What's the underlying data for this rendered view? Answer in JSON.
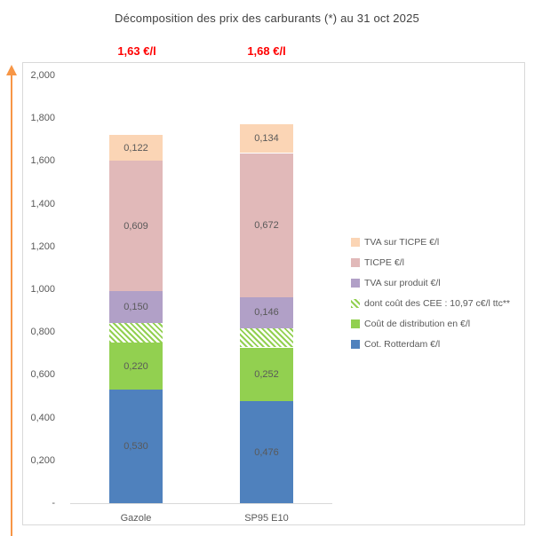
{
  "chart": {
    "title": "Décomposition des prix des carburants (*) au 31 oct 2025",
    "title_color": "#404040",
    "totals_color": "#FF0000",
    "axis_arrow_color": "#F79646",
    "border_color": "#D9D9D9",
    "text_color": "#595959"
  },
  "chart_data": {
    "type": "bar",
    "stacked": true,
    "grid": false,
    "legend_position": "right-inside",
    "categories": [
      "Gazole",
      "SP95 E10"
    ],
    "totals": [
      "1,63 €/l",
      "1,68 €/l"
    ],
    "series": [
      {
        "name": "Cot. Rotterdam €/l",
        "color": "#4F81BD",
        "pattern": "solid",
        "values": [
          0.53,
          0.476
        ],
        "labels": [
          "0,530",
          "0,476"
        ]
      },
      {
        "name": "Coût de distribution en €/l",
        "color": "#92D050",
        "pattern": "solid",
        "values": [
          0.22,
          0.252
        ],
        "labels": [
          "0,220",
          "0,252"
        ]
      },
      {
        "name": "dont coût des CEE : 10,97 c€/l ttc**",
        "color": "#92D050",
        "pattern": "diagonal-hatch",
        "values": [
          0.091,
          0.091
        ],
        "labels": [
          "",
          ""
        ]
      },
      {
        "name": "TVA sur produit €/l",
        "color": "#B1A0C7",
        "pattern": "solid",
        "values": [
          0.15,
          0.146
        ],
        "labels": [
          "0,150",
          "0,146"
        ]
      },
      {
        "name": "TICPE €/l",
        "color": "#E1B9B9",
        "pattern": "solid",
        "values": [
          0.609,
          0.672
        ],
        "labels": [
          "0,609",
          "0,672"
        ]
      },
      {
        "name": "TVA sur TICPE €/l",
        "color": "#FBD5B5",
        "pattern": "solid",
        "values": [
          0.122,
          0.134
        ],
        "labels": [
          "0,122",
          "0,134"
        ]
      }
    ],
    "legend_order_top_to_bottom": [
      "TVA sur TICPE €/l",
      "TICPE €/l",
      "TVA sur produit €/l",
      "dont coût des CEE : 10,97 c€/l ttc**",
      "Coût de distribution en €/l",
      "Cot. Rotterdam €/l"
    ],
    "y_ticks": [
      {
        "label": "2,000",
        "value": 2.0
      },
      {
        "label": "1,800",
        "value": 1.8
      },
      {
        "label": "1,600",
        "value": 1.6
      },
      {
        "label": "1,400",
        "value": 1.4
      },
      {
        "label": "1,200",
        "value": 1.2
      },
      {
        "label": "1,000",
        "value": 1.0
      },
      {
        "label": "0,800",
        "value": 0.8
      },
      {
        "label": "0,600",
        "value": 0.6
      },
      {
        "label": "0,400",
        "value": 0.4
      },
      {
        "label": "0,200",
        "value": 0.2
      },
      {
        "label": "-",
        "value": 0.0
      }
    ],
    "ylim": [
      0,
      2.0
    ],
    "unit": "€/l"
  }
}
